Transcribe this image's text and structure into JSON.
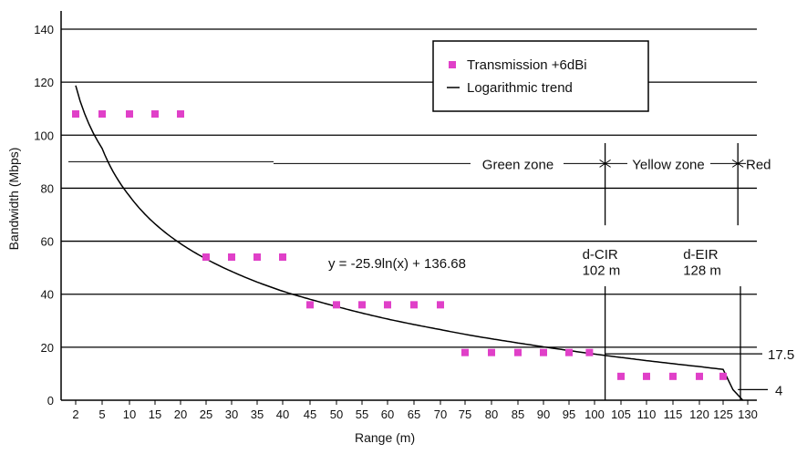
{
  "chart_data": {
    "type": "scatter",
    "xlabel": "Range (m)",
    "ylabel": "Bandwidth (Mbps)",
    "ylim": [
      0,
      140
    ],
    "yticks": [
      0,
      20,
      40,
      60,
      80,
      100,
      120,
      140
    ],
    "categories": [
      2,
      5,
      10,
      15,
      20,
      25,
      30,
      35,
      40,
      45,
      50,
      55,
      60,
      65,
      70,
      75,
      80,
      85,
      90,
      95,
      100,
      105,
      110,
      115,
      120,
      125,
      130
    ],
    "grid": "horizontal",
    "series": [
      {
        "name": "Transmission +6dBi",
        "color": "#e040c8",
        "points": [
          {
            "x": 2,
            "y": 108
          },
          {
            "x": 5,
            "y": 108
          },
          {
            "x": 10,
            "y": 108
          },
          {
            "x": 15,
            "y": 108
          },
          {
            "x": 20,
            "y": 108
          },
          {
            "x": 25,
            "y": 54
          },
          {
            "x": 30,
            "y": 54
          },
          {
            "x": 35,
            "y": 54
          },
          {
            "x": 40,
            "y": 54
          },
          {
            "x": 45,
            "y": 36
          },
          {
            "x": 50,
            "y": 36
          },
          {
            "x": 55,
            "y": 36
          },
          {
            "x": 60,
            "y": 36
          },
          {
            "x": 65,
            "y": 36
          },
          {
            "x": 70,
            "y": 36
          },
          {
            "x": 75,
            "y": 18
          },
          {
            "x": 80,
            "y": 18
          },
          {
            "x": 85,
            "y": 18
          },
          {
            "x": 90,
            "y": 18
          },
          {
            "x": 95,
            "y": 18
          },
          {
            "x": 99,
            "y": 18
          },
          {
            "x": 105,
            "y": 9
          },
          {
            "x": 110,
            "y": 9
          },
          {
            "x": 115,
            "y": 9
          },
          {
            "x": 120,
            "y": 9
          },
          {
            "x": 125,
            "y": 9
          }
        ]
      },
      {
        "name": "Logarithmic trend",
        "color": "#000000",
        "equation": "y = -25.9ln(x) + 136.68",
        "coef_a": -25.9,
        "coef_b": 136.68
      }
    ],
    "zones": {
      "green": "Green zone",
      "yellow": "Yellow zone",
      "red": "Red",
      "level_y": 90
    },
    "markers": {
      "cir": {
        "label": "d-CIR",
        "value_label": "102 m",
        "x": 102
      },
      "eir": {
        "label": "d-EIR",
        "value_label": "128 m",
        "x": 128
      }
    },
    "thresholds": {
      "high": {
        "label": "17.5",
        "y": 17.5
      },
      "low": {
        "label": "4",
        "y": 4
      }
    }
  }
}
